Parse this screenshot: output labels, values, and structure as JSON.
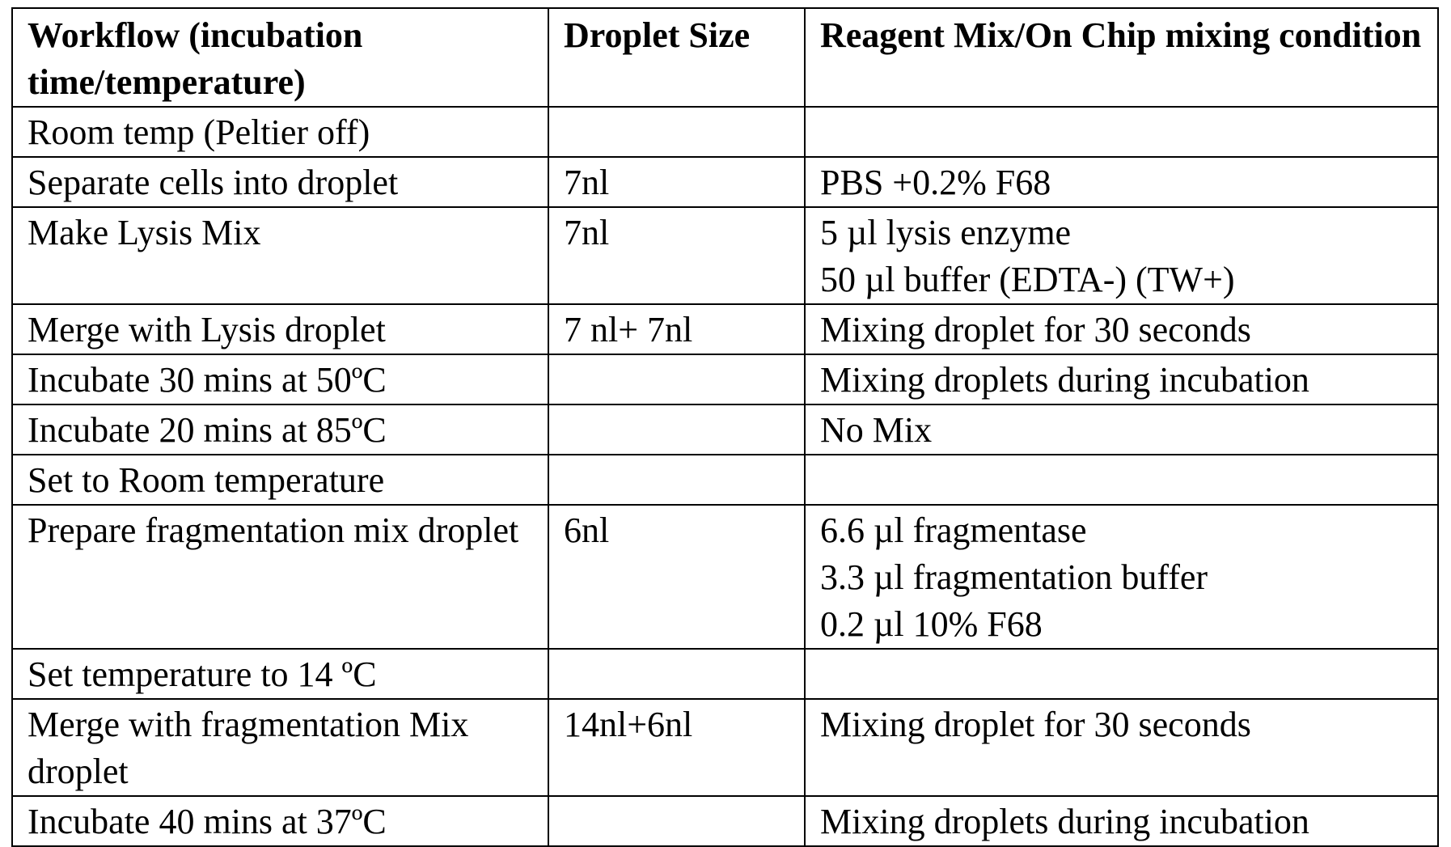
{
  "table": {
    "headers": [
      "Workflow (incubation time/temperature)",
      "Droplet Size",
      "Reagent Mix/On Chip mixing condition"
    ],
    "rows": [
      {
        "workflow": "Room temp (Peltier off)",
        "droplet_size": "",
        "reagent": ""
      },
      {
        "workflow": "Separate cells into droplet",
        "droplet_size": "7nl",
        "reagent": "PBS +0.2% F68"
      },
      {
        "workflow": "Make Lysis Mix",
        "droplet_size": "7nl",
        "reagent": "5 µl lysis enzyme\n50 µl buffer (EDTA-) (TW+)"
      },
      {
        "workflow": "Merge with Lysis droplet",
        "droplet_size": "7 nl+ 7nl",
        "reagent": "Mixing droplet for 30 seconds"
      },
      {
        "workflow": " Incubate 30 mins at 50ºC",
        "droplet_size": "",
        "reagent": "Mixing droplets during incubation"
      },
      {
        "workflow": " Incubate 20 mins at 85ºC",
        "droplet_size": "",
        "reagent": "No Mix"
      },
      {
        "workflow": " Set to Room temperature",
        "droplet_size": "",
        "reagent": ""
      },
      {
        "workflow": "Prepare fragmentation mix droplet",
        "droplet_size": "6nl",
        "reagent": "6.6 µl fragmentase\n3.3 µl fragmentation buffer\n0.2 µl 10% F68"
      },
      {
        "workflow": "Set temperature to 14 ºC",
        "droplet_size": "",
        "reagent": ""
      },
      {
        "workflow": "Merge with fragmentation Mix droplet",
        "droplet_size": "14nl+6nl",
        "reagent": "Mixing droplet for 30 seconds"
      },
      {
        "workflow": "Incubate 40 mins at 37ºC",
        "droplet_size": "",
        "reagent": "Mixing droplets during incubation"
      }
    ]
  }
}
